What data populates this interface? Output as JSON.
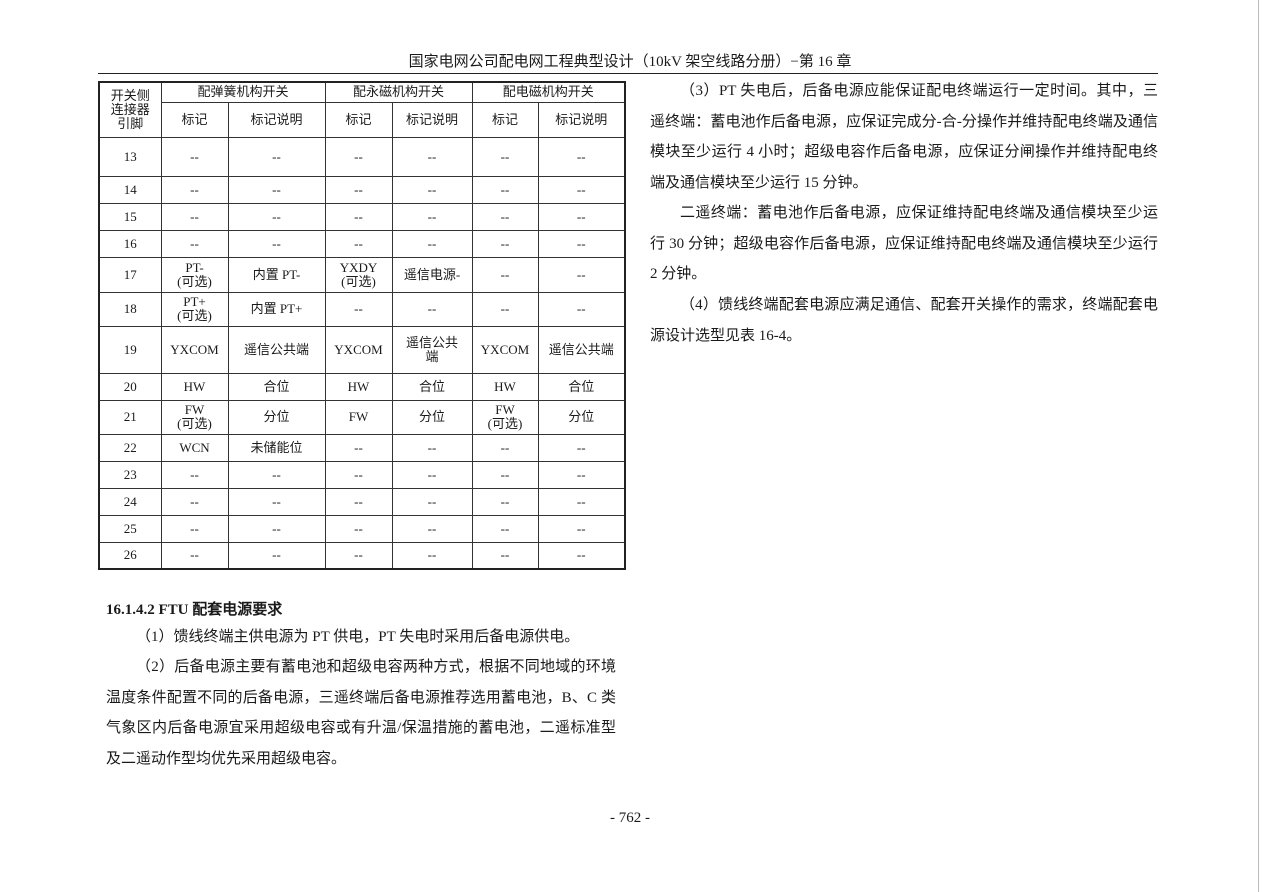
{
  "header": {
    "title": "国家电网公司配电网工程典型设计（10kV 架空线路分册）−第 16 章"
  },
  "table": {
    "col0_header": "开关侧\n连接器\n引脚",
    "groups": [
      "配弹簧机构开关",
      "配永磁机构开关",
      "配电磁机构开关"
    ],
    "sub_headers": [
      "标记",
      "标记说明",
      "标记",
      "标记说明",
      "标记",
      "标记说明"
    ],
    "rows": [
      [
        "13",
        "--",
        "--",
        "--",
        "--",
        "--",
        "--"
      ],
      [
        "14",
        "--",
        "--",
        "--",
        "--",
        "--",
        "--"
      ],
      [
        "15",
        "--",
        "--",
        "--",
        "--",
        "--",
        "--"
      ],
      [
        "16",
        "--",
        "--",
        "--",
        "--",
        "--",
        "--"
      ],
      [
        "17",
        "PT-\n(可选)",
        "内置 PT-",
        "YXDY\n(可选)",
        "遥信电源-",
        "--",
        "--"
      ],
      [
        "18",
        "PT+\n(可选)",
        "内置 PT+",
        "--",
        "--",
        "--",
        "--"
      ],
      [
        "19",
        "YXCOM",
        "遥信公共端",
        "YXCOM",
        "遥信公共\n端",
        "YXCOM",
        "遥信公共端"
      ],
      [
        "20",
        "HW",
        "合位",
        "HW",
        "合位",
        "HW",
        "合位"
      ],
      [
        "21",
        "FW\n(可选)",
        "分位",
        "FW",
        "分位",
        "FW\n(可选)",
        "分位"
      ],
      [
        "22",
        "WCN",
        "未储能位",
        "--",
        "--",
        "--",
        "--"
      ],
      [
        "23",
        "--",
        "--",
        "--",
        "--",
        "--",
        "--"
      ],
      [
        "24",
        "--",
        "--",
        "--",
        "--",
        "--",
        "--"
      ],
      [
        "25",
        "--",
        "--",
        "--",
        "--",
        "--",
        "--"
      ],
      [
        "26",
        "--",
        "--",
        "--",
        "--",
        "--",
        "--"
      ]
    ]
  },
  "left": {
    "heading": "16.1.4.2 FTU 配套电源要求",
    "p1": "（1）馈线终端主供电源为 PT 供电，PT 失电时采用后备电源供电。",
    "p2": "（2）后备电源主要有蓄电池和超级电容两种方式，根据不同地域的环境温度条件配置不同的后备电源，三遥终端后备电源推荐选用蓄电池，B、C 类气象区内后备电源宜采用超级电容或有升温/保温措施的蓄电池，二遥标准型及二遥动作型均优先采用超级电容。"
  },
  "right": {
    "p3": "（3）PT 失电后，后备电源应能保证配电终端运行一定时间。其中，三遥终端：蓄电池作后备电源，应保证完成分-合-分操作并维持配电终端及通信模块至少运行 4 小时；超级电容作后备电源，应保证分闸操作并维持配电终端及通信模块至少运行 15 分钟。",
    "p_er": "二遥终端：蓄电池作后备电源，应保证维持配电终端及通信模块至少运行 30 分钟；超级电容作后备电源，应保证维持配电终端及通信模块至少运行 2 分钟。",
    "p4": "（4）馈线终端配套电源应满足通信、配套开关操作的需求，终端配套电源设计选型见表 16-4。"
  },
  "footer": {
    "page_number": "- 762 -"
  }
}
